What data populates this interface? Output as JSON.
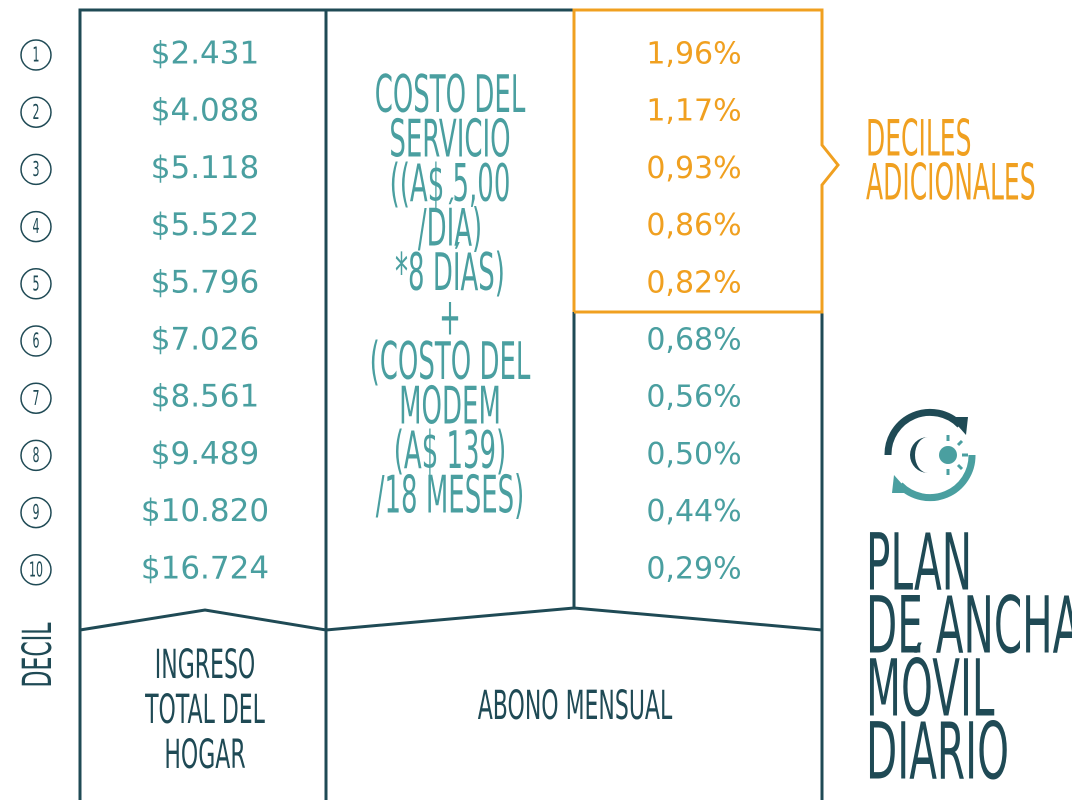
{
  "deciles": [
    "1",
    "2",
    "3",
    "4",
    "5",
    "6",
    "7",
    "8",
    "9",
    "10"
  ],
  "decil_label": "DECIL",
  "incomes": [
    "$2.431",
    "$4.088",
    "$5.118",
    "$5.522",
    "$5.796",
    "$7.026",
    "$8.561",
    "$9.489",
    "$10.820",
    "$16.724"
  ],
  "cost_formula": [
    "COSTO DEL",
    "SERVICIO",
    "((A$ 5,00",
    "/DÍA)",
    "*8 DÍAS)",
    "+",
    "(COSTO DEL",
    "MODEM",
    "(A$ 139)",
    "/18 MESES)"
  ],
  "percentages": [
    "1,96%",
    "1,17%",
    "0,93%",
    "0,86%",
    "0,82%",
    "0,68%",
    "0,56%",
    "0,50%",
    "0,44%",
    "0,29%"
  ],
  "footer": {
    "income": [
      "INGRESO",
      "TOTAL DEL",
      "HOGAR"
    ],
    "subscription": "ABONO MENSUAL"
  },
  "callout": [
    "DECILES",
    "ADICIONALES"
  ],
  "title": [
    "PLAN",
    "DE ANCHA",
    "MÓVIL",
    "DIARIO"
  ]
}
